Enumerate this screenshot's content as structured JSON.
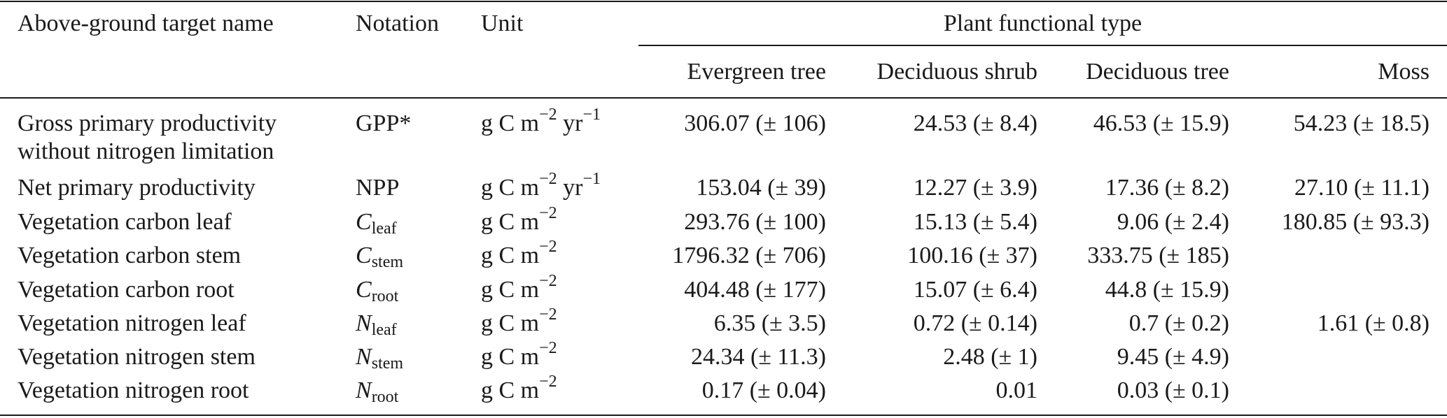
{
  "header": {
    "col_name": "Above-ground target name",
    "col_notation": "Notation",
    "col_unit": "Unit",
    "group_label": "Plant functional type",
    "pft_columns": [
      "Evergreen tree",
      "Deciduous shrub",
      "Deciduous tree",
      "Moss"
    ]
  },
  "rows": [
    {
      "name_line1": "Gross primary productivity",
      "name_line2": "without nitrogen limitation",
      "notation_base": "GPP*",
      "notation_sub": "",
      "unit_prefix": "g C m",
      "unit_exp1": "−2",
      "unit_mid": "yr",
      "unit_exp2": "−1",
      "values": [
        "306.07 (± 106)",
        "24.53 (± 8.4)",
        "46.53 (± 15.9)",
        "54.23 (± 18.5)"
      ]
    },
    {
      "name_line1": "Net primary productivity",
      "name_line2": "",
      "notation_base": "NPP",
      "notation_sub": "",
      "unit_prefix": "g C m",
      "unit_exp1": "−2",
      "unit_mid": "yr",
      "unit_exp2": "−1",
      "values": [
        "153.04 (± 39)",
        "12.27 (± 3.9)",
        "17.36 (± 8.2)",
        "27.10 (± 11.1)"
      ]
    },
    {
      "name_line1": "Vegetation carbon leaf",
      "name_line2": "",
      "notation_base": "C",
      "notation_sub": "leaf",
      "unit_prefix": "g C m",
      "unit_exp1": "−2",
      "unit_mid": "",
      "unit_exp2": "",
      "values": [
        "293.76 (± 100)",
        "15.13 (± 5.4)",
        "9.06 (± 2.4)",
        "180.85 (± 93.3)"
      ]
    },
    {
      "name_line1": "Vegetation carbon stem",
      "name_line2": "",
      "notation_base": "C",
      "notation_sub": "stem",
      "unit_prefix": "g C m",
      "unit_exp1": "−2",
      "unit_mid": "",
      "unit_exp2": "",
      "values": [
        "1796.32 (± 706)",
        "100.16 (± 37)",
        "333.75 (± 185)",
        ""
      ]
    },
    {
      "name_line1": "Vegetation carbon root",
      "name_line2": "",
      "notation_base": "C",
      "notation_sub": "root",
      "unit_prefix": "g C m",
      "unit_exp1": "−2",
      "unit_mid": "",
      "unit_exp2": "",
      "values": [
        "404.48 (± 177)",
        "15.07 (± 6.4)",
        "44.8 (± 15.9)",
        ""
      ]
    },
    {
      "name_line1": "Vegetation nitrogen leaf",
      "name_line2": "",
      "notation_base": "N",
      "notation_sub": "leaf",
      "unit_prefix": "g C m",
      "unit_exp1": "−2",
      "unit_mid": "",
      "unit_exp2": "",
      "values": [
        "6.35 (± 3.5)",
        "0.72 (± 0.14)",
        "0.7 (± 0.2)",
        "1.61 (± 0.8)"
      ]
    },
    {
      "name_line1": "Vegetation nitrogen stem",
      "name_line2": "",
      "notation_base": "N",
      "notation_sub": "stem",
      "unit_prefix": "g C m",
      "unit_exp1": "−2",
      "unit_mid": "",
      "unit_exp2": "",
      "values": [
        "24.34 (± 11.3)",
        "2.48 (± 1)",
        "9.45 (± 4.9)",
        ""
      ]
    },
    {
      "name_line1": "Vegetation nitrogen root",
      "name_line2": "",
      "notation_base": "N",
      "notation_sub": "root",
      "unit_prefix": "g C m",
      "unit_exp1": "−2",
      "unit_mid": "",
      "unit_exp2": "",
      "values": [
        "0.17 (± 0.04)",
        "0.01",
        "0.03 (± 0.1)",
        ""
      ]
    }
  ]
}
